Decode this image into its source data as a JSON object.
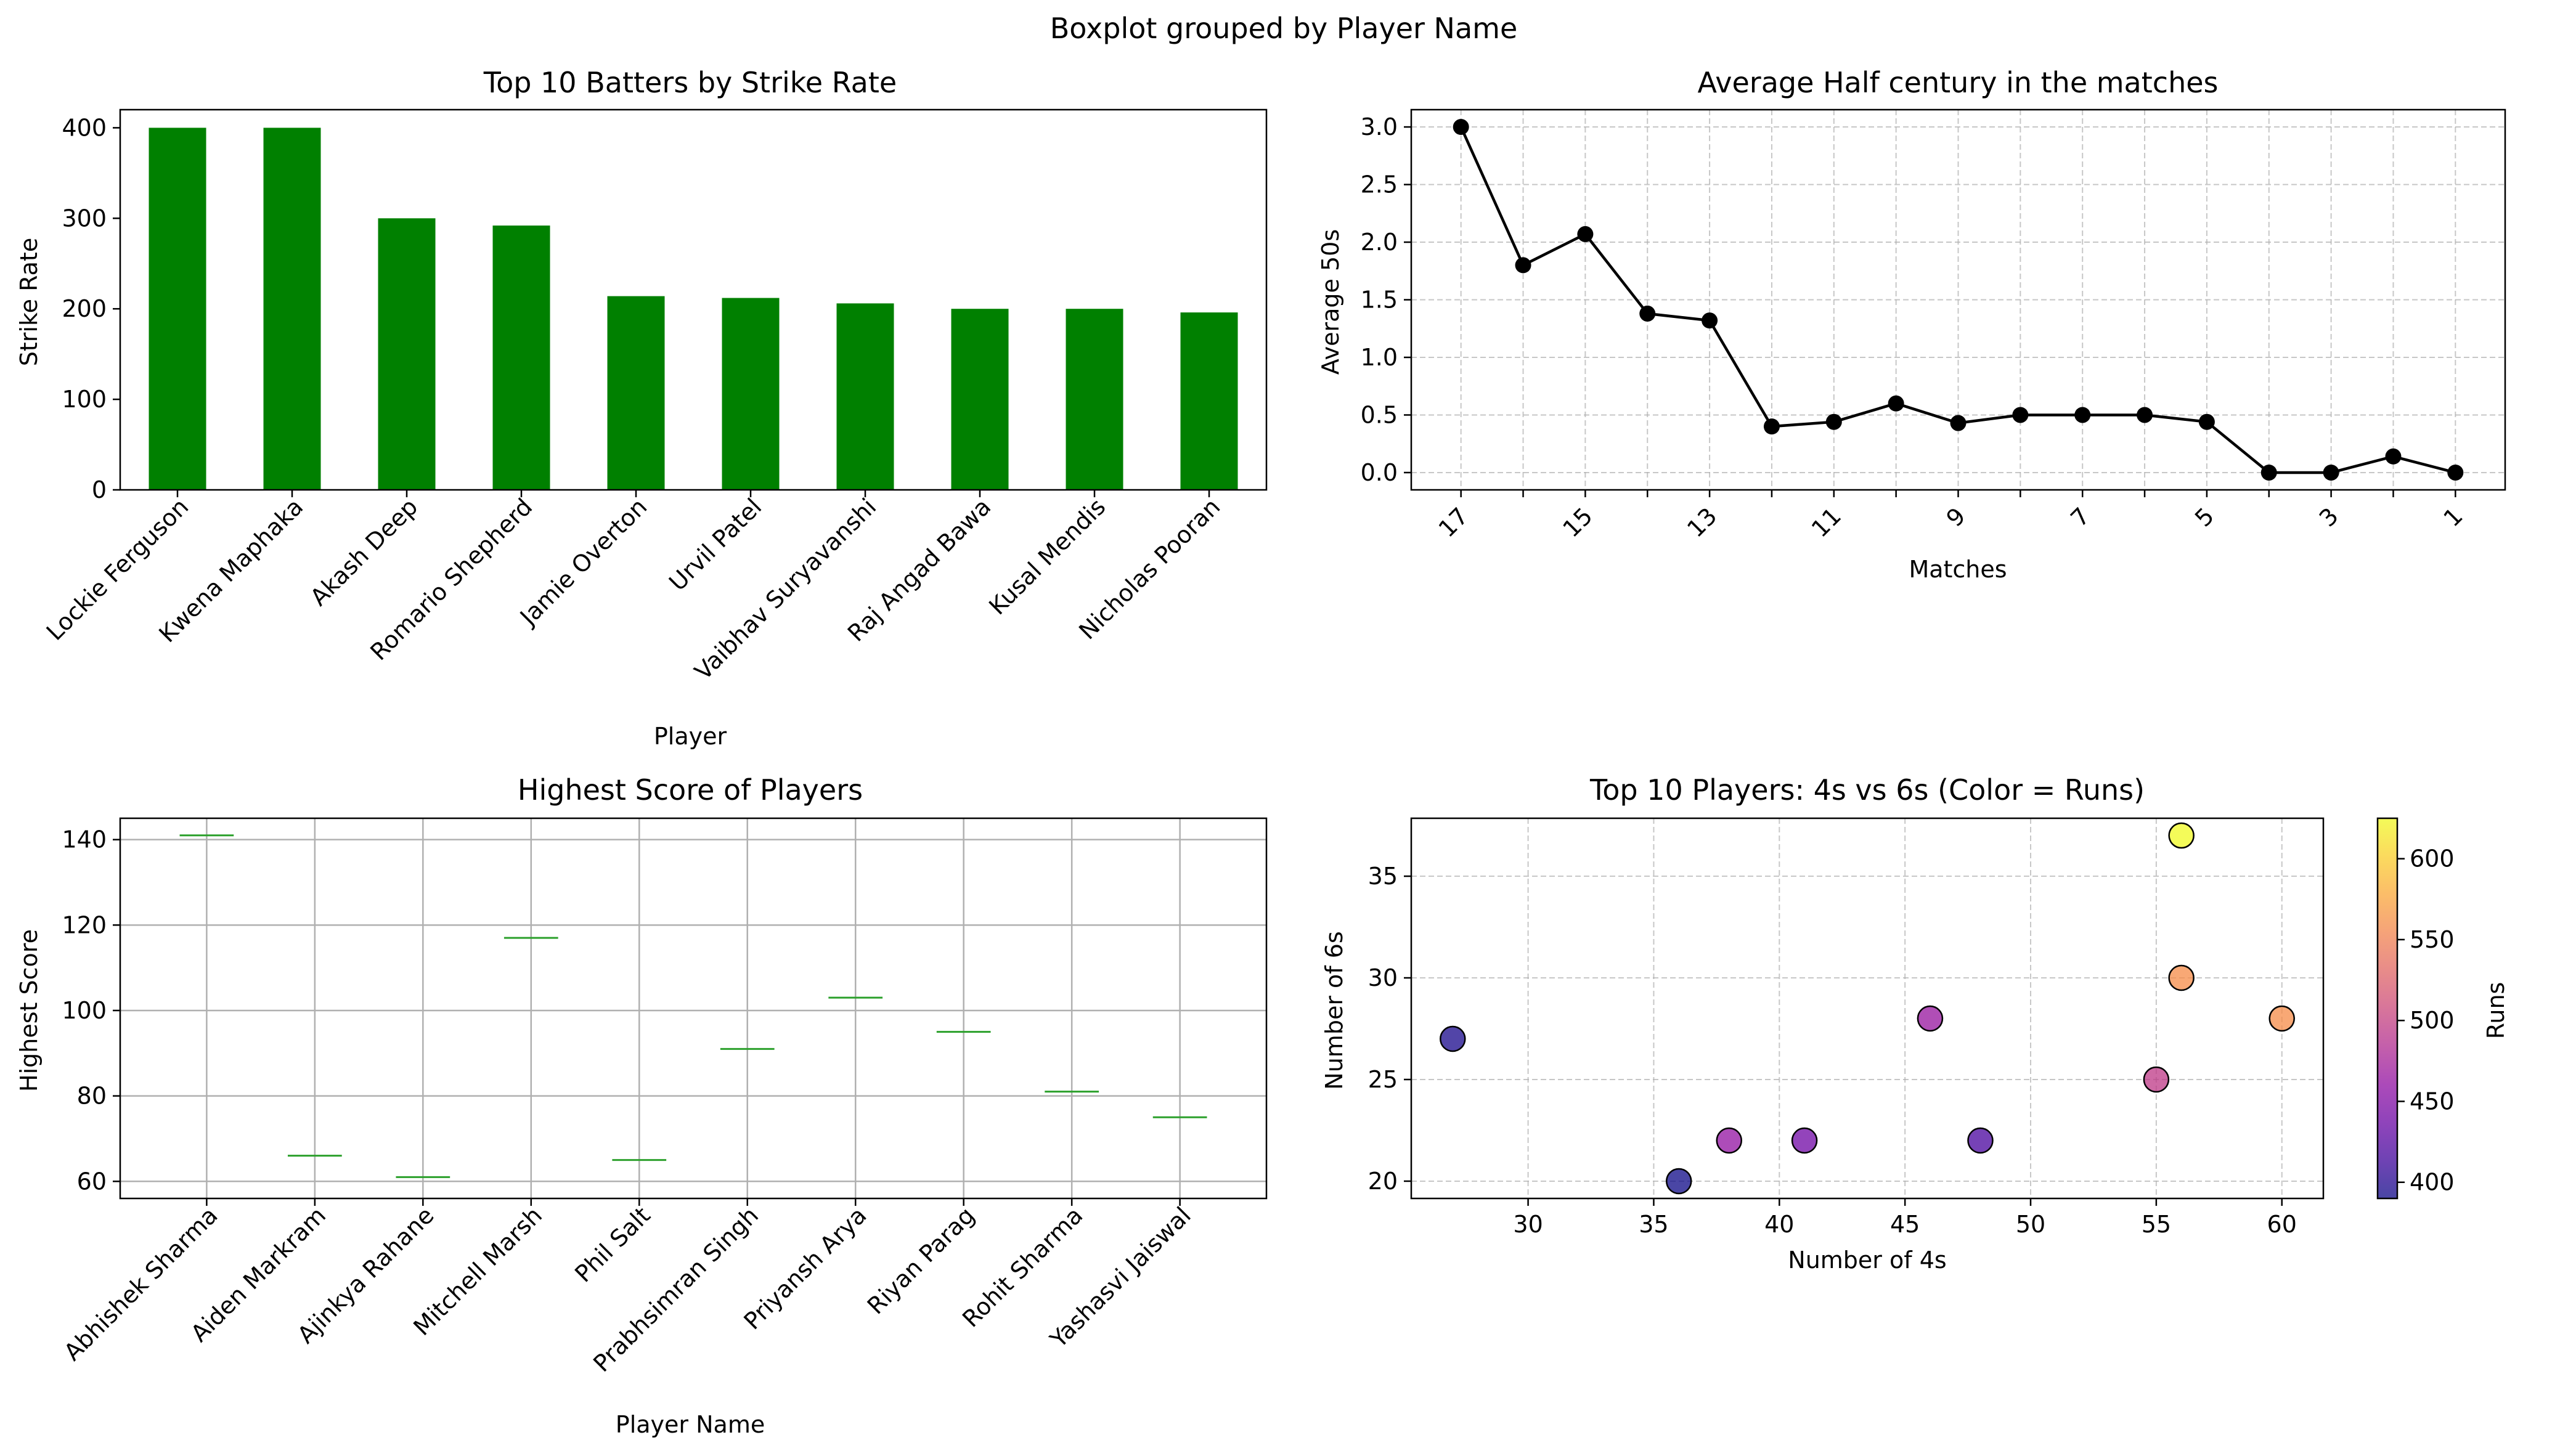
{
  "suptitle": "Boxplot grouped by Player Name",
  "chart_data": [
    {
      "type": "bar",
      "title": "Top 10 Batters by Strike Rate",
      "xlabel": "Player",
      "ylabel": "Strike Rate",
      "categories": [
        "Lockie Ferguson",
        "Kwena Maphaka",
        "Akash Deep",
        "Romario Shepherd",
        "Jamie Overton",
        "Urvil Patel",
        "Vaibhav Suryavanshi",
        "Raj Angad Bawa",
        "Kusal Mendis",
        "Nicholas Pooran"
      ],
      "values": [
        400,
        400,
        300,
        292,
        214,
        212,
        206,
        200,
        200,
        196
      ],
      "ylim": [
        0,
        420
      ],
      "yticks": [
        0,
        100,
        200,
        300,
        400
      ],
      "color": "#008000",
      "grid": false
    },
    {
      "type": "line",
      "title": "Average Half century in the matches",
      "xlabel": "Matches",
      "ylabel": "Average 50s",
      "x": [
        17,
        16,
        15,
        14,
        13,
        12,
        11,
        10,
        9,
        8,
        7,
        6,
        5,
        4,
        3,
        2,
        1
      ],
      "values": [
        3.0,
        1.8,
        2.07,
        1.38,
        1.32,
        0.4,
        0.44,
        0.6,
        0.43,
        0.5,
        0.5,
        0.5,
        0.44,
        0.0,
        0.0,
        0.14,
        0.0
      ],
      "xticks": [
        17,
        15,
        13,
        11,
        9,
        7,
        5,
        3,
        1
      ],
      "yticks": [
        "0.0",
        "0.5",
        "1.0",
        "1.5",
        "2.0",
        "2.5",
        "3.0"
      ],
      "ylim": [
        -0.15,
        3.15
      ],
      "x_inverted": true,
      "color": "#000000",
      "grid": true
    },
    {
      "type": "box",
      "title": "Highest Score of Players",
      "xlabel": "Player Name",
      "ylabel": "Highest Score",
      "categories": [
        "Abhishek Sharma",
        "Aiden Markram",
        "Ajinkya Rahane",
        "Mitchell Marsh",
        "Phil Salt",
        "Prabhsimran Singh",
        "Priyansh Arya",
        "Riyan Parag",
        "Rohit Sharma",
        "Yashasvi Jaiswal"
      ],
      "values": [
        141,
        66,
        61,
        117,
        65,
        91,
        103,
        95,
        81,
        75
      ],
      "ylim": [
        56.0,
        145.0
      ],
      "yticks": [
        60,
        80,
        100,
        120,
        140
      ],
      "median_color": "#2ca02c",
      "grid": true
    },
    {
      "type": "scatter",
      "title": "Top 10 Players: 4s vs 6s (Color = Runs)",
      "xlabel": "Number of 4s",
      "ylabel": "Number of 6s",
      "colorbar_label": "Runs",
      "colormap": "plasma",
      "points": [
        {
          "x": 27,
          "y": 27,
          "runs": 395
        },
        {
          "x": 36,
          "y": 20,
          "runs": 390
        },
        {
          "x": 38,
          "y": 22,
          "runs": 462
        },
        {
          "x": 41,
          "y": 22,
          "runs": 440
        },
        {
          "x": 46,
          "y": 28,
          "runs": 465
        },
        {
          "x": 48,
          "y": 22,
          "runs": 418
        },
        {
          "x": 55,
          "y": 25,
          "runs": 495
        },
        {
          "x": 56,
          "y": 37,
          "runs": 625
        },
        {
          "x": 56,
          "y": 30,
          "runs": 560
        },
        {
          "x": 60,
          "y": 28,
          "runs": 560
        }
      ],
      "xlim": [
        25.35,
        61.65
      ],
      "ylim": [
        19.15,
        37.85
      ],
      "xticks": [
        30,
        35,
        40,
        45,
        50,
        55,
        60
      ],
      "yticks": [
        20,
        25,
        30,
        35
      ],
      "colorbar_ticks": [
        400,
        450,
        500,
        550,
        600
      ],
      "colorbar_range": [
        390,
        625
      ],
      "grid": true
    }
  ]
}
